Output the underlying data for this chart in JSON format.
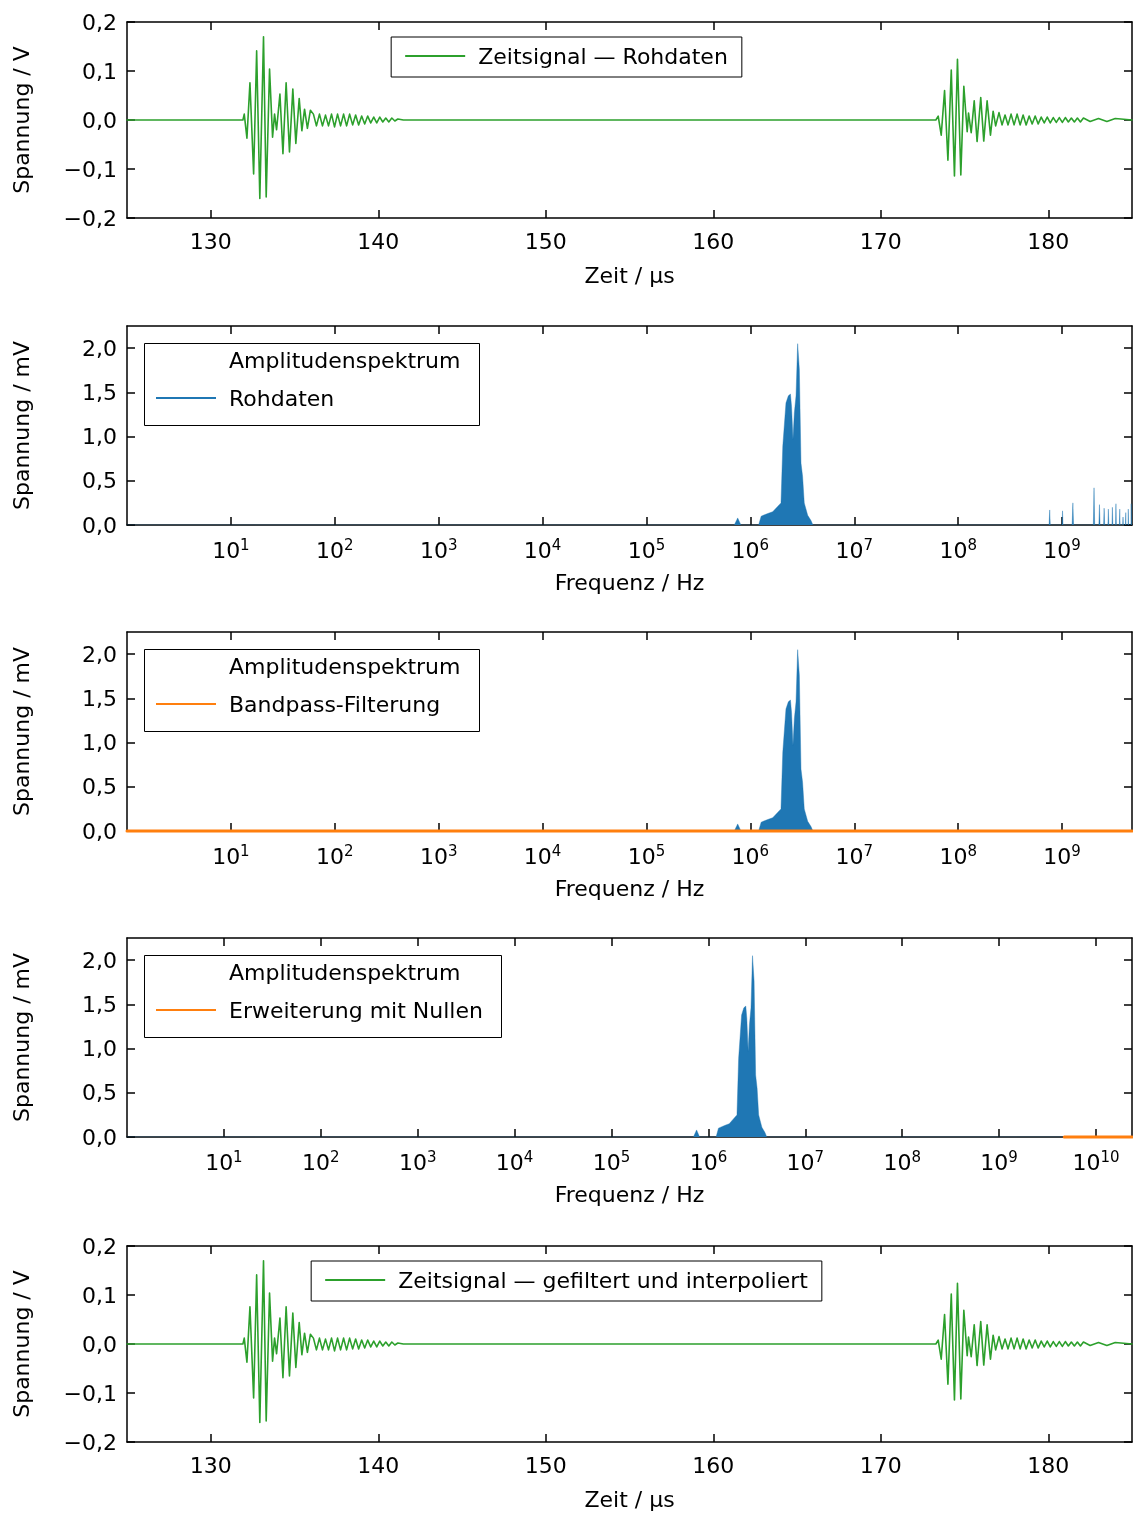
{
  "chart_data": [
    {
      "type": "line",
      "xlabel": "Zeit / µs",
      "ylabel": "Spannung / V",
      "legend": "top",
      "xlim": [
        125,
        185
      ],
      "xticks": [
        130,
        140,
        150,
        160,
        170,
        180
      ],
      "ylim": [
        -0.2,
        0.2
      ],
      "yticks": [
        {
          "value": -0.2,
          "label": "−0,2"
        },
        {
          "value": -0.1,
          "label": "−0,1"
        },
        {
          "value": 0,
          "label": "0,0"
        },
        {
          "value": 0.1,
          "label": "0,1"
        },
        {
          "value": 0.2,
          "label": "0,2"
        }
      ],
      "series": [
        {
          "name": "Zeitsignal — Rohdaten",
          "color": "#2ca02c",
          "x": [
            125,
            131.92,
            132.0,
            132.16,
            132.34,
            132.56,
            132.74,
            132.93,
            133.15,
            133.31,
            133.51,
            133.69,
            133.81,
            133.93,
            134.13,
            134.31,
            134.5,
            134.7,
            134.9,
            135.08,
            135.28,
            135.44,
            135.6,
            135.77,
            135.95,
            136.13,
            136.31,
            136.49,
            136.67,
            136.85,
            137.03,
            137.21,
            137.39,
            137.57,
            137.75,
            137.93,
            138.11,
            138.29,
            138.47,
            138.65,
            138.83,
            139.01,
            139.19,
            139.37,
            139.55,
            139.73,
            139.91,
            140.09,
            140.27,
            140.45,
            140.63,
            140.81,
            140.99,
            141.17,
            141.5,
            173.29,
            173.43,
            173.61,
            173.81,
            174.01,
            174.21,
            174.4,
            174.58,
            174.78,
            174.96,
            175.16,
            175.24,
            175.4,
            175.58,
            175.75,
            175.97,
            176.15,
            176.35,
            176.55,
            176.71,
            176.86,
            177.06,
            177.24,
            177.42,
            177.6,
            177.78,
            177.96,
            178.14,
            178.32,
            178.5,
            178.68,
            178.86,
            179.04,
            179.22,
            179.4,
            179.58,
            179.76,
            179.94,
            180.12,
            180.3,
            180.48,
            180.66,
            180.84,
            181.02,
            181.2,
            181.38,
            181.56,
            181.74,
            181.92,
            182.1,
            182.5,
            183,
            183.5,
            184,
            185
          ],
          "values": [
            0,
            0,
            0.012,
            -0.037,
            0.076,
            -0.11,
            0.141,
            -0.16,
            0.17,
            -0.157,
            0.104,
            -0.035,
            0.012,
            -0.02,
            0.053,
            -0.069,
            0.076,
            -0.065,
            0.063,
            -0.048,
            0.044,
            -0.022,
            0.022,
            -0.017,
            0.02,
            0.012,
            -0.012,
            0.012,
            -0.012,
            0.01,
            -0.012,
            0.012,
            -0.014,
            0.012,
            -0.012,
            0.012,
            -0.012,
            0.012,
            -0.01,
            0.01,
            -0.01,
            0.008,
            -0.008,
            0.008,
            -0.006,
            0.006,
            -0.006,
            0.006,
            -0.004,
            0.004,
            -0.004,
            0.004,
            -0.002,
            0.002,
            0,
            0,
            0.008,
            -0.031,
            0.06,
            -0.082,
            0.102,
            -0.114,
            0.124,
            -0.112,
            0.069,
            -0.024,
            0.014,
            -0.026,
            0.039,
            -0.044,
            0.046,
            -0.043,
            0.039,
            -0.031,
            0.018,
            -0.012,
            0.015,
            -0.01,
            0.01,
            -0.01,
            0.012,
            -0.01,
            0.012,
            -0.01,
            0.01,
            -0.01,
            0.008,
            -0.008,
            0.008,
            -0.008,
            0.006,
            -0.006,
            0.006,
            -0.006,
            0.005,
            -0.005,
            0.005,
            -0.005,
            0.005,
            -0.004,
            0.004,
            -0.004,
            0.004,
            -0.004,
            0.004,
            -0.003,
            0.003,
            -0.003,
            0.003,
            0
          ]
        }
      ]
    },
    {
      "type": "area",
      "xlabel": "Frequenz / Hz",
      "ylabel": "Spannung / mV",
      "log": "x",
      "legend": "top left",
      "legend_title": "Amplitudenspektrum",
      "xlim": [
        1,
        4710000000.0
      ],
      "xticks": [
        {
          "value": 10,
          "label": "10$^{1}$"
        },
        {
          "value": 100,
          "label": "10$^{2}$"
        },
        {
          "value": 1000,
          "label": "10$^{3}$"
        },
        {
          "value": 10000,
          "label": "10$^{4}$"
        },
        {
          "value": 100000,
          "label": "10$^{5}$"
        },
        {
          "value": 1000000,
          "label": "10$^{6}$"
        },
        {
          "value": 10000000,
          "label": "10$^{7}$"
        },
        {
          "value": 100000000,
          "label": "10$^{8}$"
        },
        {
          "value": 1000000000,
          "label": "10$^{9}$"
        }
      ],
      "ylim": [
        0,
        2.25
      ],
      "yticks": [
        {
          "value": 0,
          "label": "0,0"
        },
        {
          "value": 0.5,
          "label": "0,5"
        },
        {
          "value": 1,
          "label": "1,0"
        },
        {
          "value": 1.5,
          "label": "1,5"
        },
        {
          "value": 2,
          "label": "2,0"
        }
      ],
      "series": [
        {
          "name": "Rohdaten",
          "color": "#1f77b4",
          "x": [
            1,
            700000.0,
            755000.0,
            810000.0,
            1200000.0,
            1270000.0,
            1470000.0,
            1640000.0,
            1830000.0,
            1970000.0,
            2050000.0,
            2200000.0,
            2320000.0,
            2430000.0,
            2490000.0,
            2570000.0,
            2650000.0,
            2750000.0,
            2850000.0,
            2960000.0,
            3070000.0,
            3180000.0,
            3300000.0,
            3560000.0,
            3830000.0,
            4000000.0,
            750000000.0,
            760000000.0,
            770000000.0,
            1000000000.0,
            1010000000.0,
            1020000000.0,
            1250000000.0,
            1270000000.0,
            1290000000.0,
            2000000000.0,
            2030000000.0,
            2060000000.0,
            2260000000.0,
            2290000000.0,
            2320000000.0,
            2510000000.0,
            2540000000.0,
            2570000000.0,
            2760000000.0,
            2790000000.0,
            2820000000.0,
            3020000000.0,
            3050000000.0,
            3080000000.0,
            3270000000.0,
            3300000000.0,
            3330000000.0,
            3560000000.0,
            3590000000.0,
            3620000000.0,
            3830000000.0,
            3860000000.0,
            3890000000.0,
            4070000000.0,
            4100000000.0,
            4130000000.0,
            4310000000.0,
            4340000000.0,
            4370000000.0,
            4600000000.0,
            4630000000.0,
            4660000000.0,
            4710000000.0
          ],
          "values": [
            0,
            0,
            0.08,
            0,
            0,
            0.1,
            0.13,
            0.15,
            0.21,
            0.25,
            0.89,
            1.38,
            1.46,
            1.48,
            1.34,
            0.97,
            1.27,
            1.46,
            2.05,
            1.76,
            0.7,
            0.55,
            0.25,
            0.11,
            0.05,
            0,
            0,
            0.17,
            0,
            0,
            0.16,
            0,
            0,
            0.25,
            0,
            0,
            0.42,
            0,
            0,
            0.23,
            0,
            0,
            0.19,
            0,
            0,
            0.18,
            0,
            0,
            0.2,
            0,
            0,
            0.24,
            0,
            0,
            0.18,
            0,
            0,
            0.09,
            0,
            0,
            0.14,
            0,
            0,
            0.18,
            0,
            0,
            0.24,
            0,
            0
          ]
        }
      ]
    },
    {
      "type": "area",
      "xlabel": "Frequenz / Hz",
      "ylabel": "Spannung / mV",
      "log": "x",
      "legend": "top left",
      "legend_title": "Amplitudenspektrum",
      "xlim": [
        1,
        4710000000.0
      ],
      "xticks": [
        {
          "value": 10,
          "label": "10$^{1}$"
        },
        {
          "value": 100,
          "label": "10$^{2}$"
        },
        {
          "value": 1000,
          "label": "10$^{3}$"
        },
        {
          "value": 10000,
          "label": "10$^{4}$"
        },
        {
          "value": 100000,
          "label": "10$^{5}$"
        },
        {
          "value": 1000000,
          "label": "10$^{6}$"
        },
        {
          "value": 10000000,
          "label": "10$^{7}$"
        },
        {
          "value": 100000000,
          "label": "10$^{8}$"
        },
        {
          "value": 1000000000,
          "label": "10$^{9}$"
        }
      ],
      "ylim": [
        0,
        2.25
      ],
      "yticks": [
        {
          "value": 0,
          "label": "0,0"
        },
        {
          "value": 0.5,
          "label": "0,5"
        },
        {
          "value": 1,
          "label": "1,0"
        },
        {
          "value": 1.5,
          "label": "1,5"
        },
        {
          "value": 2,
          "label": "2,0"
        }
      ],
      "series": [
        {
          "name": "Bandpass-Filterung",
          "type": "line",
          "color": "#ff7f0e",
          "x": [
            1,
            4710000000.0
          ],
          "values": [
            0,
            0
          ]
        },
        {
          "color": "#1f77b4",
          "x": [
            540000.0,
            700000.0,
            755000.0,
            810000.0,
            1200000.0,
            1270000.0,
            1470000.0,
            1640000.0,
            1830000.0,
            1970000.0,
            2050000.0,
            2200000.0,
            2320000.0,
            2430000.0,
            2490000.0,
            2570000.0,
            2650000.0,
            2750000.0,
            2850000.0,
            2960000.0,
            3070000.0,
            3180000.0,
            3300000.0,
            3560000.0,
            3830000.0,
            4000000.0,
            8900000.0
          ],
          "values": [
            0,
            0,
            0.08,
            0,
            0,
            0.1,
            0.13,
            0.15,
            0.21,
            0.25,
            0.89,
            1.38,
            1.46,
            1.48,
            1.34,
            0.97,
            1.27,
            1.46,
            2.05,
            1.76,
            0.7,
            0.55,
            0.25,
            0.11,
            0.05,
            0,
            0
          ]
        }
      ]
    },
    {
      "type": "area",
      "xlabel": "Frequenz / Hz",
      "ylabel": "Spannung / mV",
      "log": "x",
      "legend": "top left",
      "legend_title": "Amplitudenspektrum",
      "xlim": [
        1,
        23500000000.0
      ],
      "xticks": [
        {
          "value": 10,
          "label": "10$^{1}$"
        },
        {
          "value": 100,
          "label": "10$^{2}$"
        },
        {
          "value": 1000,
          "label": "10$^{3}$"
        },
        {
          "value": 10000,
          "label": "10$^{4}$"
        },
        {
          "value": 100000,
          "label": "10$^{5}$"
        },
        {
          "value": 1000000,
          "label": "10$^{6}$"
        },
        {
          "value": 10000000,
          "label": "10$^{7}$"
        },
        {
          "value": 100000000,
          "label": "10$^{8}$"
        },
        {
          "value": 1000000000,
          "label": "10$^{9}$"
        },
        {
          "value": 10000000000,
          "label": "10$^{10}$"
        }
      ],
      "ylim": [
        0,
        2.25
      ],
      "yticks": [
        {
          "value": 0,
          "label": "0,0"
        },
        {
          "value": 0.5,
          "label": "0,5"
        },
        {
          "value": 1,
          "label": "1,0"
        },
        {
          "value": 1.5,
          "label": "1,5"
        },
        {
          "value": 2,
          "label": "2,0"
        }
      ],
      "series": [
        {
          "name": "Erweiterung mit Nullen",
          "type": "line",
          "color": "#ff7f0e",
          "x": [
            4700000000.0,
            23500000000.0
          ],
          "values": [
            0,
            0
          ]
        },
        {
          "color": "#1f77b4",
          "x": [
            1,
            700000.0,
            755000.0,
            810000.0,
            1200000.0,
            1270000.0,
            1470000.0,
            1640000.0,
            1830000.0,
            1970000.0,
            2050000.0,
            2200000.0,
            2320000.0,
            2430000.0,
            2490000.0,
            2570000.0,
            2650000.0,
            2750000.0,
            2850000.0,
            2960000.0,
            3070000.0,
            3180000.0,
            3300000.0,
            3560000.0,
            3830000.0,
            4000000.0,
            4700000000.0
          ],
          "values": [
            0,
            0,
            0.08,
            0,
            0,
            0.1,
            0.13,
            0.15,
            0.21,
            0.25,
            0.89,
            1.38,
            1.46,
            1.48,
            1.34,
            0.97,
            1.27,
            1.46,
            2.05,
            1.76,
            0.7,
            0.55,
            0.25,
            0.11,
            0.05,
            0,
            0
          ]
        }
      ]
    },
    {
      "type": "line",
      "xlabel": "Zeit / µs",
      "ylabel": "Spannung / V",
      "legend": "top",
      "xlim": [
        125,
        185
      ],
      "xticks": [
        130,
        140,
        150,
        160,
        170,
        180
      ],
      "ylim": [
        -0.2,
        0.2
      ],
      "yticks": [
        {
          "value": -0.2,
          "label": "−0,2"
        },
        {
          "value": -0.1,
          "label": "−0,1"
        },
        {
          "value": 0,
          "label": "0,0"
        },
        {
          "value": 0.1,
          "label": "0,1"
        },
        {
          "value": 0.2,
          "label": "0,2"
        }
      ],
      "series": [
        {
          "name": "Zeitsignal — gefiltert und interpoliert",
          "color": "#2ca02c",
          "x": [
            125,
            131.92,
            132.0,
            132.16,
            132.34,
            132.56,
            132.74,
            132.93,
            133.15,
            133.31,
            133.51,
            133.69,
            133.81,
            133.93,
            134.13,
            134.31,
            134.5,
            134.7,
            134.9,
            135.08,
            135.28,
            135.44,
            135.6,
            135.77,
            135.95,
            136.13,
            136.31,
            136.49,
            136.67,
            136.85,
            137.03,
            137.21,
            137.39,
            137.57,
            137.75,
            137.93,
            138.11,
            138.29,
            138.47,
            138.65,
            138.83,
            139.01,
            139.19,
            139.37,
            139.55,
            139.73,
            139.91,
            140.09,
            140.27,
            140.45,
            140.63,
            140.81,
            140.99,
            141.17,
            141.5,
            173.29,
            173.43,
            173.61,
            173.81,
            174.01,
            174.21,
            174.4,
            174.58,
            174.78,
            174.96,
            175.16,
            175.24,
            175.4,
            175.58,
            175.75,
            175.97,
            176.15,
            176.35,
            176.55,
            176.71,
            176.86,
            177.06,
            177.24,
            177.42,
            177.6,
            177.78,
            177.96,
            178.14,
            178.32,
            178.5,
            178.68,
            178.86,
            179.04,
            179.22,
            179.4,
            179.58,
            179.76,
            179.94,
            180.12,
            180.3,
            180.48,
            180.66,
            180.84,
            181.02,
            181.2,
            181.38,
            181.56,
            181.74,
            181.92,
            182.1,
            182.5,
            183,
            183.5,
            184,
            185
          ],
          "values": [
            0,
            0,
            0.012,
            -0.037,
            0.076,
            -0.11,
            0.141,
            -0.16,
            0.17,
            -0.157,
            0.104,
            -0.035,
            0.012,
            -0.02,
            0.053,
            -0.069,
            0.076,
            -0.065,
            0.063,
            -0.048,
            0.044,
            -0.022,
            0.022,
            -0.017,
            0.02,
            0.012,
            -0.012,
            0.012,
            -0.012,
            0.01,
            -0.012,
            0.012,
            -0.014,
            0.012,
            -0.012,
            0.012,
            -0.012,
            0.012,
            -0.01,
            0.01,
            -0.01,
            0.008,
            -0.008,
            0.008,
            -0.006,
            0.006,
            -0.006,
            0.006,
            -0.004,
            0.004,
            -0.004,
            0.004,
            -0.002,
            0.002,
            0,
            0,
            0.008,
            -0.031,
            0.06,
            -0.082,
            0.102,
            -0.114,
            0.124,
            -0.112,
            0.069,
            -0.024,
            0.014,
            -0.026,
            0.039,
            -0.044,
            0.046,
            -0.043,
            0.039,
            -0.031,
            0.018,
            -0.012,
            0.015,
            -0.01,
            0.01,
            -0.01,
            0.012,
            -0.01,
            0.012,
            -0.01,
            0.01,
            -0.01,
            0.008,
            -0.008,
            0.008,
            -0.008,
            0.006,
            -0.006,
            0.006,
            -0.006,
            0.005,
            -0.005,
            0.005,
            -0.005,
            0.005,
            -0.004,
            0.004,
            -0.004,
            0.004,
            -0.004,
            0.004,
            -0.003,
            0.003,
            -0.003,
            0.003,
            0
          ]
        }
      ]
    }
  ]
}
